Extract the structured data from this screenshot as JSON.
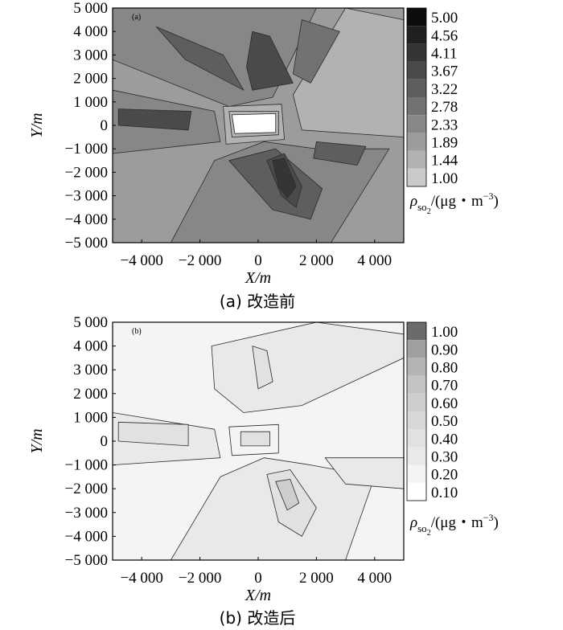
{
  "chart_data": [
    {
      "type": "heatmap",
      "panel_letter": "(a)",
      "caption": "(a) 改造前",
      "xlabel": "X/m",
      "ylabel": "Y/m",
      "xlim": [
        -5000,
        5000
      ],
      "ylim": [
        -5000,
        5000
      ],
      "x_ticks": [
        "−4 000",
        "−2 000",
        "0",
        "2 000",
        "4 000"
      ],
      "x_tick_values": [
        -4000,
        -2000,
        0,
        2000,
        4000
      ],
      "y_ticks": [
        "5 000",
        "4 000",
        "3 000",
        "2 000",
        "1 000",
        "0",
        "−1 000",
        "−2 000",
        "−3 000",
        "−4 000",
        "−5 000"
      ],
      "y_tick_values": [
        5000,
        4000,
        3000,
        2000,
        1000,
        0,
        -1000,
        -2000,
        -3000,
        -4000,
        -5000
      ],
      "colorbar": {
        "levels": [
          "5.00",
          "4.56",
          "4.11",
          "3.67",
          "3.22",
          "2.78",
          "2.33",
          "1.89",
          "1.44",
          "1.00"
        ],
        "colors": [
          "#0d0d0d",
          "#202020",
          "#353535",
          "#4a4a4a",
          "#5e5e5e",
          "#727272",
          "#878787",
          "#9c9c9c",
          "#b2b2b2",
          "#cacaca"
        ],
        "label_prefix": "ρ",
        "label_sub": "so",
        "label_subsub": "2",
        "label_suffix": "/(μg・m",
        "label_sup": "−3",
        "label_end": ")"
      },
      "regions": [
        {
          "level": 0.0,
          "points": [
            [
              -5000,
              5000
            ],
            [
              5000,
              5000
            ],
            [
              5000,
              -5000
            ],
            [
              -5000,
              -5000
            ]
          ]
        },
        {
          "level": 2.5,
          "points": [
            [
              -5000,
              5000
            ],
            [
              2000,
              5000
            ],
            [
              500,
              1200
            ],
            [
              -1000,
              800
            ],
            [
              -5000,
              2800
            ]
          ]
        },
        {
          "level": 2.5,
          "points": [
            [
              -5000,
              1500
            ],
            [
              -1500,
              600
            ],
            [
              -1300,
              -700
            ],
            [
              -5000,
              -1200
            ]
          ]
        },
        {
          "level": 2.5,
          "points": [
            [
              -3000,
              -5000
            ],
            [
              2500,
              -5000
            ],
            [
              4500,
              -1000
            ],
            [
              2000,
              -1000
            ],
            [
              200,
              -700
            ],
            [
              -1500,
              -1500
            ]
          ]
        },
        {
          "level": 1.5,
          "points": [
            [
              5000,
              4500
            ],
            [
              3000,
              5000
            ],
            [
              1200,
              1300
            ],
            [
              1500,
              -200
            ],
            [
              5000,
              -500
            ]
          ]
        },
        {
          "level": 3.4,
          "points": [
            [
              -3500,
              4200
            ],
            [
              -1200,
              3000
            ],
            [
              -500,
              1500
            ],
            [
              -2500,
              2800
            ]
          ]
        },
        {
          "level": 3.6,
          "points": [
            [
              -200,
              4000
            ],
            [
              400,
              3800
            ],
            [
              1200,
              1800
            ],
            [
              -200,
              1500
            ],
            [
              -400,
              2500
            ]
          ]
        },
        {
          "level": 3.0,
          "points": [
            [
              1500,
              4500
            ],
            [
              2800,
              4000
            ],
            [
              1800,
              1800
            ],
            [
              1200,
              2200
            ]
          ]
        },
        {
          "level": 3.8,
          "points": [
            [
              -4800,
              700
            ],
            [
              -2300,
              600
            ],
            [
              -2400,
              -200
            ],
            [
              -4800,
              0
            ]
          ]
        },
        {
          "level": 3.4,
          "points": [
            [
              2000,
              -700
            ],
            [
              3700,
              -900
            ],
            [
              3400,
              -1700
            ],
            [
              1900,
              -1400
            ]
          ]
        },
        {
          "level": 3.4,
          "points": [
            [
              -1000,
              -1500
            ],
            [
              600,
              -1000
            ],
            [
              2200,
              -2700
            ],
            [
              1800,
              -4000
            ],
            [
              500,
              -3600
            ]
          ]
        },
        {
          "level": 3.8,
          "points": [
            [
              300,
              -1500
            ],
            [
              900,
              -1200
            ],
            [
              1500,
              -2600
            ],
            [
              1300,
              -3500
            ],
            [
              800,
              -3000
            ]
          ]
        },
        {
          "level": 4.3,
          "points": [
            [
              500,
              -1500
            ],
            [
              900,
              -1400
            ],
            [
              1300,
              -2600
            ],
            [
              1000,
              -3100
            ],
            [
              700,
              -2600
            ]
          ]
        },
        {
          "level": 1.6,
          "points": [
            [
              -1200,
              800
            ],
            [
              800,
              900
            ],
            [
              900,
              -600
            ],
            [
              -1100,
              -800
            ]
          ]
        },
        {
          "level": 1.3,
          "points": [
            [
              -1000,
              600
            ],
            [
              700,
              600
            ],
            [
              700,
              -400
            ],
            [
              -900,
              -500
            ]
          ]
        },
        {
          "level": 1.0,
          "points": [
            [
              -900,
              450
            ],
            [
              600,
              500
            ],
            [
              600,
              -300
            ],
            [
              -800,
              -350
            ]
          ]
        }
      ]
    },
    {
      "type": "heatmap",
      "panel_letter": "(b)",
      "caption": "(b) 改造后",
      "xlabel": "X/m",
      "ylabel": "Y/m",
      "xlim": [
        -5000,
        5000
      ],
      "ylim": [
        -5000,
        5000
      ],
      "x_ticks": [
        "−4 000",
        "−2 000",
        "0",
        "2 000",
        "4 000"
      ],
      "x_tick_values": [
        -4000,
        -2000,
        0,
        2000,
        4000
      ],
      "y_ticks": [
        "5 000",
        "4 000",
        "3 000",
        "2 000",
        "1 000",
        "0",
        "−1 000",
        "−2 000",
        "−3 000",
        "−4 000",
        "−5 000"
      ],
      "y_tick_values": [
        5000,
        4000,
        3000,
        2000,
        1000,
        0,
        -1000,
        -2000,
        -3000,
        -4000,
        -5000
      ],
      "colorbar": {
        "levels": [
          "1.00",
          "0.90",
          "0.80",
          "0.70",
          "0.60",
          "0.50",
          "0.40",
          "0.30",
          "0.20",
          "0.10"
        ],
        "colors": [
          "#6b6b6b",
          "#a0a0a0",
          "#b4b4b4",
          "#c3c3c3",
          "#cecece",
          "#d8d8d8",
          "#e1e1e1",
          "#e9e9e9",
          "#f4f4f4",
          "#ffffff"
        ],
        "label_prefix": "ρ",
        "label_sub": "so",
        "label_subsub": "2",
        "label_suffix": "/(μg・m",
        "label_sup": "−3",
        "label_end": ")"
      },
      "regions": [
        {
          "level": 0.0,
          "points": [
            [
              -5000,
              5000
            ],
            [
              5000,
              5000
            ],
            [
              5000,
              -5000
            ],
            [
              -5000,
              -5000
            ]
          ]
        },
        {
          "level": 0.35,
          "points": [
            [
              -5000,
              1200
            ],
            [
              -1500,
              500
            ],
            [
              -1300,
              -700
            ],
            [
              -5000,
              -1000
            ]
          ]
        },
        {
          "level": 0.35,
          "points": [
            [
              -1600,
              4000
            ],
            [
              2000,
              5000
            ],
            [
              5000,
              4500
            ],
            [
              5000,
              3500
            ],
            [
              1500,
              1500
            ],
            [
              -500,
              1200
            ],
            [
              -1500,
              2200
            ]
          ]
        },
        {
          "level": 0.35,
          "points": [
            [
              -3000,
              -5000
            ],
            [
              3000,
              -5000
            ],
            [
              4000,
              -1500
            ],
            [
              1800,
              -1000
            ],
            [
              200,
              -700
            ],
            [
              -1300,
              -1500
            ]
          ]
        },
        {
          "level": 0.35,
          "points": [
            [
              2300,
              -700
            ],
            [
              5000,
              -700
            ],
            [
              5000,
              -2000
            ],
            [
              3000,
              -1800
            ]
          ]
        },
        {
          "level": 0.45,
          "points": [
            [
              -4800,
              800
            ],
            [
              -2400,
              700
            ],
            [
              -2400,
              -200
            ],
            [
              -4800,
              0
            ]
          ]
        },
        {
          "level": 0.45,
          "points": [
            [
              -200,
              4000
            ],
            [
              300,
              3800
            ],
            [
              500,
              2500
            ],
            [
              0,
              2200
            ]
          ]
        },
        {
          "level": 0.45,
          "points": [
            [
              300,
              -1400
            ],
            [
              1100,
              -1200
            ],
            [
              2000,
              -2800
            ],
            [
              1500,
              -4000
            ],
            [
              700,
              -3400
            ]
          ]
        },
        {
          "level": 0.6,
          "points": [
            [
              600,
              -1700
            ],
            [
              1100,
              -1600
            ],
            [
              1400,
              -2600
            ],
            [
              1000,
              -2900
            ]
          ]
        },
        {
          "level": 0.2,
          "points": [
            [
              -1000,
              600
            ],
            [
              700,
              700
            ],
            [
              700,
              -500
            ],
            [
              -900,
              -600
            ]
          ]
        },
        {
          "level": 0.45,
          "points": [
            [
              -600,
              400
            ],
            [
              400,
              400
            ],
            [
              400,
              -200
            ],
            [
              -600,
              -200
            ]
          ]
        }
      ]
    }
  ]
}
